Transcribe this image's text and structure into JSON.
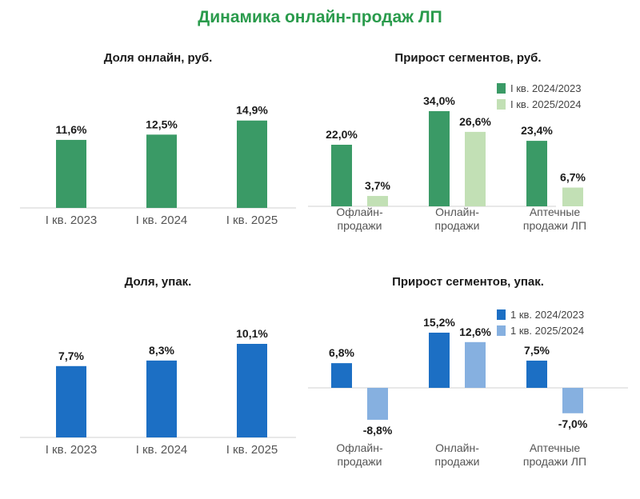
{
  "title": "Динамика онлайн-продаж ЛП",
  "chart_data": [
    {
      "type": "bar",
      "title": "Доля онлайн, руб.",
      "categories": [
        "I кв. 2023",
        "I кв. 2024",
        "I кв. 2025"
      ],
      "values": [
        11.6,
        12.5,
        14.9
      ],
      "value_labels": [
        "11,6%",
        "12,5%",
        "14,9%"
      ],
      "color": "#3a9a66",
      "ylim": [
        0,
        15
      ]
    },
    {
      "type": "bar",
      "title": "Прирост сегментов, руб.",
      "categories": [
        "Офлайн-\nпродажи",
        "Онлайн-\nпродажи",
        "Аптечные\nпродажи ЛП"
      ],
      "series": [
        {
          "name": "I кв. 2024/2023",
          "color": "#3a9a66",
          "values": [
            22.0,
            34.0,
            23.4
          ],
          "value_labels": [
            "22,0%",
            "34,0%",
            "23,4%"
          ]
        },
        {
          "name": "I кв. 2025/2024",
          "color": "#c2e0b5",
          "values": [
            3.7,
            26.6,
            6.7
          ],
          "value_labels": [
            "3,7%",
            "26,6%",
            "6,7%"
          ]
        }
      ],
      "legend_position": "top-right",
      "ylim": [
        0,
        34
      ]
    },
    {
      "type": "bar",
      "title": "Доля, упак.",
      "categories": [
        "I кв. 2023",
        "I кв. 2024",
        "I кв. 2025"
      ],
      "values": [
        7.7,
        8.3,
        10.1
      ],
      "value_labels": [
        "7,7%",
        "8,3%",
        "10,1%"
      ],
      "color": "#1c6fc4",
      "ylim": [
        0,
        10.1
      ]
    },
    {
      "type": "bar",
      "title": "Прирост сегментов, упак.",
      "categories": [
        "Офлайн-\nпродажи",
        "Онлайн-\nпродажи",
        "Аптечные\nпродажи ЛП"
      ],
      "series": [
        {
          "name": "1 кв. 2024/2023",
          "color": "#1c6fc4",
          "values": [
            6.8,
            15.2,
            7.5
          ],
          "value_labels": [
            "6,8%",
            "15,2%",
            "7,5%"
          ]
        },
        {
          "name": "1 кв. 2025/2024",
          "color": "#86b0e0",
          "values": [
            -8.8,
            12.6,
            -7.0
          ],
          "value_labels": [
            "-8,8%",
            "12,6%",
            "-7,0%"
          ]
        }
      ],
      "legend_position": "top-right",
      "ylim": [
        -8.8,
        15.2
      ]
    }
  ]
}
